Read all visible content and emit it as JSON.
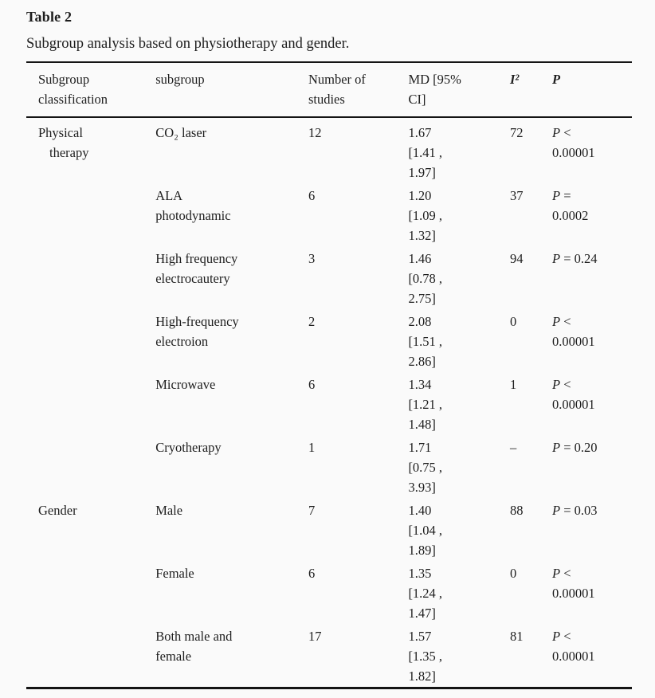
{
  "page": {
    "background_color": "#fafafa",
    "text_color": "#1e1e1e",
    "rule_color": "#141414"
  },
  "table": {
    "title": "Table 2",
    "caption": "Subgroup analysis based on physiotherapy and gender.",
    "columns": [
      {
        "key": "classification",
        "header_lines": [
          "Subgroup",
          "classification"
        ],
        "hang_indent": true
      },
      {
        "key": "subgroup",
        "header_lines": [
          "subgroup"
        ]
      },
      {
        "key": "n_studies",
        "header_lines": [
          "Number of",
          "studies"
        ]
      },
      {
        "key": "md",
        "header_lines": [
          "MD [95%",
          "CI]"
        ]
      },
      {
        "key": "i2",
        "header_lines": [
          "I²"
        ],
        "emphasis": true
      },
      {
        "key": "p",
        "header_lines": [
          "P"
        ],
        "emphasis": true,
        "italic_char": "P"
      }
    ],
    "rows": [
      {
        "classification": [
          "Physical",
          "therapy"
        ],
        "subgroup": [
          "CO₂ laser"
        ],
        "n_studies": [
          "12"
        ],
        "md": [
          "1.67",
          "[1.41 ,",
          "1.97]"
        ],
        "i2": [
          "72"
        ],
        "p": [
          "P <",
          "0.00001"
        ]
      },
      {
        "classification": [],
        "subgroup": [
          "ALA",
          "photodynamic"
        ],
        "n_studies": [
          "6"
        ],
        "md": [
          "1.20",
          "[1.09 ,",
          "1.32]"
        ],
        "i2": [
          "37"
        ],
        "p": [
          "P =",
          "0.0002"
        ]
      },
      {
        "classification": [],
        "subgroup": [
          "High frequency",
          "electrocautery"
        ],
        "n_studies": [
          "3"
        ],
        "md": [
          "1.46",
          "[0.78 ,",
          "2.75]"
        ],
        "i2": [
          "94"
        ],
        "p": [
          "P = 0.24"
        ]
      },
      {
        "classification": [],
        "subgroup": [
          "High-frequency",
          "electroion"
        ],
        "n_studies": [
          "2"
        ],
        "md": [
          "2.08",
          "[1.51 ,",
          "2.86]"
        ],
        "i2": [
          "0"
        ],
        "p": [
          "P <",
          "0.00001"
        ]
      },
      {
        "classification": [],
        "subgroup": [
          "Microwave"
        ],
        "n_studies": [
          "6"
        ],
        "md": [
          "1.34",
          "[1.21 ,",
          "1.48]"
        ],
        "i2": [
          "1"
        ],
        "p": [
          "P <",
          "0.00001"
        ]
      },
      {
        "classification": [],
        "subgroup": [
          "Cryotherapy"
        ],
        "n_studies": [
          "1"
        ],
        "md": [
          "1.71",
          "[0.75 ,",
          "3.93]"
        ],
        "i2": [
          "–"
        ],
        "p": [
          "P = 0.20"
        ]
      },
      {
        "classification": [
          "Gender"
        ],
        "subgroup": [
          "Male"
        ],
        "n_studies": [
          "7"
        ],
        "md": [
          "1.40",
          "[1.04 ,",
          "1.89]"
        ],
        "i2": [
          "88"
        ],
        "p": [
          "P = 0.03"
        ]
      },
      {
        "classification": [],
        "subgroup": [
          "Female"
        ],
        "n_studies": [
          "6"
        ],
        "md": [
          "1.35",
          "[1.24 ,",
          "1.47]"
        ],
        "i2": [
          "0"
        ],
        "p": [
          "P <",
          "0.00001"
        ]
      },
      {
        "classification": [],
        "subgroup": [
          "Both male and",
          "female"
        ],
        "n_studies": [
          "17"
        ],
        "md": [
          "1.57",
          "[1.35 ,",
          "1.82]"
        ],
        "i2": [
          "81"
        ],
        "p": [
          "P <",
          "0.00001"
        ]
      }
    ]
  }
}
